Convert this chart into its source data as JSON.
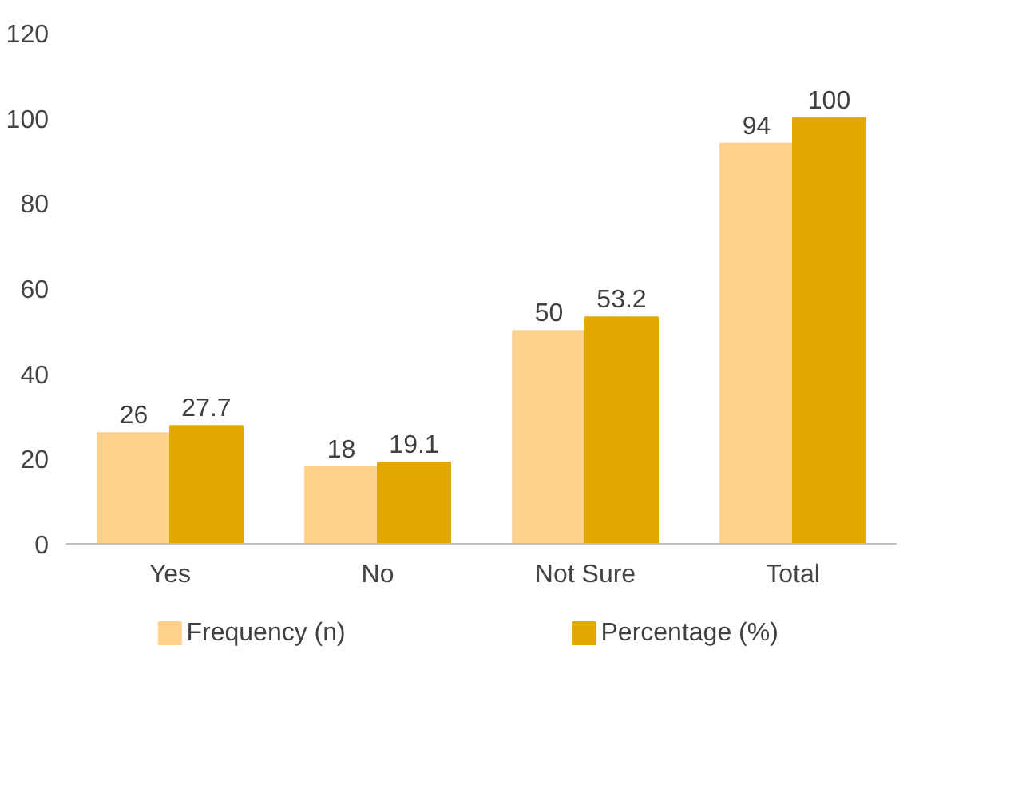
{
  "chart_data": {
    "type": "bar",
    "categories": [
      "Yes",
      "No",
      "Not Sure",
      "Total"
    ],
    "series": [
      {
        "name": "Frequency (n)",
        "color": "#ffd18a",
        "values": [
          26,
          18,
          50,
          94
        ]
      },
      {
        "name": "Percentage (%)",
        "color": "#e0a800",
        "values": [
          27.7,
          19.1,
          53.2,
          100
        ]
      }
    ],
    "ylim": [
      0,
      120
    ],
    "yticks": [
      0,
      20,
      40,
      60,
      80,
      100,
      120
    ],
    "grid": false,
    "legend": "bottom",
    "data_labels": true
  }
}
